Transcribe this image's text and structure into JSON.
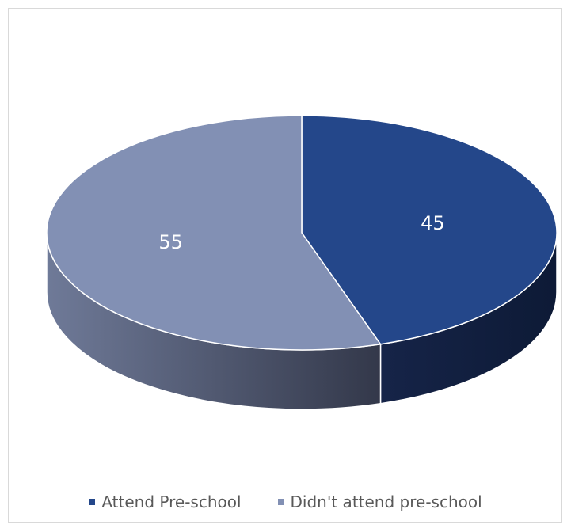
{
  "chart_data": {
    "type": "pie",
    "title": "",
    "style": "3d",
    "categories": [
      "Attend Pre-school",
      "Didn't attend pre-school"
    ],
    "values": [
      45,
      55
    ],
    "data_labels": [
      "45",
      "55"
    ],
    "colors": {
      "Attend Pre-school": "#24478a",
      "Didn't attend pre-school": "#8290b4"
    },
    "legend_position": "bottom"
  },
  "legend": {
    "items": [
      {
        "label": "Attend Pre-school",
        "color": "#24478a"
      },
      {
        "label": "Didn't attend pre-school",
        "color": "#8290b4"
      }
    ]
  }
}
